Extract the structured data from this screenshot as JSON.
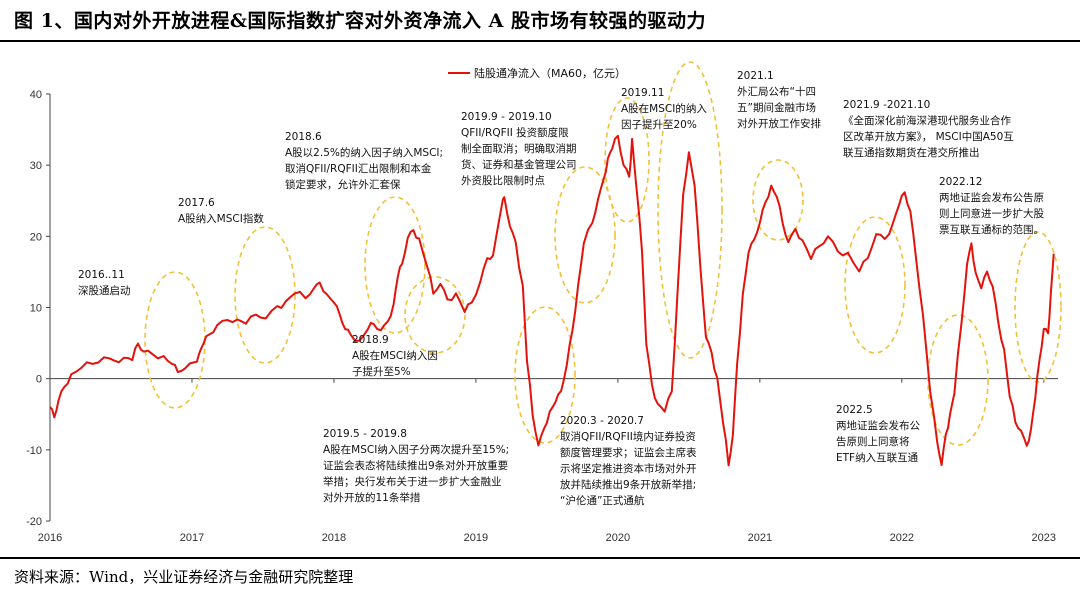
{
  "title": "图 1、国内对外开放进程&国际指数扩容对外资净流入 A 股市场有较强的驱动力",
  "source": "资料来源：Wind，兴业证券经济与金融研究院整理",
  "chart_data": {
    "type": "line",
    "legend": "陆股通净流入（MA60，亿元）",
    "legend_position": "top-center",
    "x_ticks": [
      "2016",
      "2017",
      "2018",
      "2019",
      "2020",
      "2021",
      "2022",
      "2023"
    ],
    "y_ticks": [
      "40",
      "30",
      "20",
      "10",
      "0",
      "-10",
      "-20"
    ],
    "ylim": [
      -20,
      40
    ],
    "xlim": [
      2016.0,
      2023.1
    ],
    "grid": false,
    "colors": {
      "line": "#e3120b",
      "circle": "#f2c039"
    },
    "series": [
      {
        "name": "陆股通净流入（MA60，亿元）",
        "points": [
          [
            2016.0,
            -4.0
          ],
          [
            2016.03,
            -5.5
          ],
          [
            2016.06,
            -3.0
          ],
          [
            2016.1,
            -1.0
          ],
          [
            2016.15,
            0.5
          ],
          [
            2016.22,
            1.5
          ],
          [
            2016.3,
            2.2
          ],
          [
            2016.38,
            2.8
          ],
          [
            2016.45,
            2.5
          ],
          [
            2016.52,
            3.0
          ],
          [
            2016.58,
            2.8
          ],
          [
            2016.62,
            4.8
          ],
          [
            2016.66,
            3.8
          ],
          [
            2016.72,
            3.6
          ],
          [
            2016.8,
            3.0
          ],
          [
            2016.86,
            2.0
          ],
          [
            2016.9,
            1.0
          ],
          [
            2016.95,
            1.6
          ],
          [
            2017.02,
            2.2
          ],
          [
            2017.05,
            3.5
          ],
          [
            2017.08,
            5.0
          ],
          [
            2017.12,
            6.0
          ],
          [
            2017.18,
            7.5
          ],
          [
            2017.25,
            8.3
          ],
          [
            2017.32,
            8.5
          ],
          [
            2017.38,
            7.6
          ],
          [
            2017.45,
            9.0
          ],
          [
            2017.52,
            8.6
          ],
          [
            2017.6,
            10.0
          ],
          [
            2017.66,
            10.8
          ],
          [
            2017.72,
            12.0
          ],
          [
            2017.8,
            11.5
          ],
          [
            2017.86,
            12.6
          ],
          [
            2017.9,
            13.5
          ],
          [
            2017.95,
            12.0
          ],
          [
            2018.0,
            10.5
          ],
          [
            2018.04,
            9.0
          ],
          [
            2018.08,
            7.0
          ],
          [
            2018.12,
            6.3
          ],
          [
            2018.18,
            5.2
          ],
          [
            2018.24,
            7.0
          ],
          [
            2018.28,
            7.8
          ],
          [
            2018.33,
            6.6
          ],
          [
            2018.38,
            8.0
          ],
          [
            2018.42,
            10.5
          ],
          [
            2018.45,
            14.5
          ],
          [
            2018.48,
            16.0
          ],
          [
            2018.52,
            19.8
          ],
          [
            2018.56,
            21.0
          ],
          [
            2018.6,
            19.5
          ],
          [
            2018.66,
            15.5
          ],
          [
            2018.7,
            12.0
          ],
          [
            2018.75,
            13.5
          ],
          [
            2018.8,
            11.0
          ],
          [
            2018.86,
            12.0
          ],
          [
            2018.92,
            9.5
          ],
          [
            2018.97,
            10.5
          ],
          [
            2019.03,
            13.5
          ],
          [
            2019.08,
            17.0
          ],
          [
            2019.12,
            17.5
          ],
          [
            2019.18,
            24.0
          ],
          [
            2019.2,
            25.5
          ],
          [
            2019.24,
            21.5
          ],
          [
            2019.28,
            19.0
          ],
          [
            2019.33,
            13.0
          ],
          [
            2019.36,
            2.5
          ],
          [
            2019.4,
            -5.0
          ],
          [
            2019.44,
            -9.5
          ],
          [
            2019.48,
            -7.0
          ],
          [
            2019.52,
            -4.5
          ],
          [
            2019.56,
            -3.5
          ],
          [
            2019.6,
            -1.8
          ],
          [
            2019.64,
            2.0
          ],
          [
            2019.68,
            7.0
          ],
          [
            2019.72,
            13.0
          ],
          [
            2019.76,
            19.0
          ],
          [
            2019.82,
            22.0
          ],
          [
            2019.86,
            25.0
          ],
          [
            2019.9,
            28.0
          ],
          [
            2019.93,
            31.0
          ],
          [
            2019.96,
            32.5
          ],
          [
            2020.0,
            34.0
          ],
          [
            2020.04,
            30.0
          ],
          [
            2020.08,
            28.5
          ],
          [
            2020.1,
            33.5
          ],
          [
            2020.13,
            27.0
          ],
          [
            2020.17,
            18.0
          ],
          [
            2020.2,
            5.0
          ],
          [
            2020.24,
            -1.0
          ],
          [
            2020.28,
            -3.5
          ],
          [
            2020.33,
            -4.5
          ],
          [
            2020.38,
            -2.0
          ],
          [
            2020.42,
            12.0
          ],
          [
            2020.46,
            26.0
          ],
          [
            2020.5,
            32.0
          ],
          [
            2020.54,
            27.0
          ],
          [
            2020.58,
            16.0
          ],
          [
            2020.62,
            6.0
          ],
          [
            2020.66,
            3.5
          ],
          [
            2020.7,
            0.0
          ],
          [
            2020.74,
            -6.0
          ],
          [
            2020.78,
            -12.0
          ],
          [
            2020.81,
            -8.0
          ],
          [
            2020.84,
            2.0
          ],
          [
            2020.88,
            12.0
          ],
          [
            2020.92,
            17.5
          ],
          [
            2020.96,
            19.5
          ],
          [
            2021.0,
            22.0
          ],
          [
            2021.04,
            25.0
          ],
          [
            2021.08,
            27.0
          ],
          [
            2021.12,
            25.5
          ],
          [
            2021.16,
            22.0
          ],
          [
            2021.2,
            19.0
          ],
          [
            2021.25,
            21.0
          ],
          [
            2021.3,
            19.5
          ],
          [
            2021.36,
            17.0
          ],
          [
            2021.42,
            18.5
          ],
          [
            2021.48,
            20.0
          ],
          [
            2021.55,
            18.0
          ],
          [
            2021.62,
            17.5
          ],
          [
            2021.7,
            15.0
          ],
          [
            2021.76,
            17.0
          ],
          [
            2021.82,
            20.5
          ],
          [
            2021.88,
            19.5
          ],
          [
            2021.94,
            22.0
          ],
          [
            2021.98,
            24.5
          ],
          [
            2022.02,
            26.0
          ],
          [
            2022.06,
            23.5
          ],
          [
            2022.1,
            17.0
          ],
          [
            2022.15,
            9.0
          ],
          [
            2022.2,
            -2.0
          ],
          [
            2022.25,
            -9.0
          ],
          [
            2022.28,
            -12.0
          ],
          [
            2022.31,
            -8.0
          ],
          [
            2022.34,
            -5.0
          ],
          [
            2022.37,
            -2.0
          ],
          [
            2022.42,
            8.0
          ],
          [
            2022.46,
            16.0
          ],
          [
            2022.49,
            19.0
          ],
          [
            2022.52,
            15.0
          ],
          [
            2022.56,
            12.5
          ],
          [
            2022.6,
            15.0
          ],
          [
            2022.64,
            13.0
          ],
          [
            2022.68,
            8.0
          ],
          [
            2022.72,
            4.0
          ],
          [
            2022.76,
            -2.5
          ],
          [
            2022.8,
            -6.0
          ],
          [
            2022.84,
            -7.5
          ],
          [
            2022.88,
            -9.5
          ],
          [
            2022.91,
            -7.0
          ],
          [
            2022.94,
            -2.5
          ],
          [
            2022.97,
            2.5
          ],
          [
            2023.0,
            7.0
          ],
          [
            2023.03,
            6.5
          ],
          [
            2023.05,
            12.0
          ],
          [
            2023.07,
            17.5
          ]
        ]
      }
    ],
    "annotations": [
      {
        "lines": [
          "2016..11",
          "深股通启动"
        ]
      },
      {
        "lines": [
          "2017.6",
          "A股纳入MSCI指数"
        ]
      },
      {
        "lines": [
          "2018.6",
          "A股以2.5%的纳入因子纳入MSCI;",
          "取消QFII/RQFII汇出限制和本金",
          "锁定要求，允许外汇套保"
        ]
      },
      {
        "lines": [
          "2018.9",
          "A股在MSCI纳入因",
          "子提升至5%"
        ]
      },
      {
        "lines": [
          "2019.5 - 2019.8",
          "A股在MSCI纳入因子分两次提升至15%;",
          "证监会表态将陆续推出9条对外开放重要",
          "举措；央行发布关于进一步扩大金融业",
          "对外开放的11条举措"
        ]
      },
      {
        "lines": [
          "2019.9 - 2019.10",
          "QFII/RQFII 投资额度限",
          "制全面取消；明确取消期",
          "货、证券和基金管理公司",
          "外资股比限制时点"
        ]
      },
      {
        "lines": [
          "2019.11",
          "A股在MSCI的纳入",
          "因子提升至20%"
        ]
      },
      {
        "lines": [
          "2020.3 - 2020.7",
          "取消QFII/RQFII境内证券投资",
          "额度管理要求；证监会主席表",
          "示将坚定推进资本市场对外开",
          "放并陆续推出9条开放新举措;",
          "“沪伦通”正式通航"
        ]
      },
      {
        "lines": [
          "2021.1",
          "外汇局公布“十四",
          "五”期间金融市场",
          "对外开放工作安排"
        ]
      },
      {
        "lines": [
          "2021.9 -2021.10",
          "《全面深化前海深港现代服务业合作",
          "区改革开放方案》， MSCI中国A50互",
          "联互通指数期货在港交所推出"
        ]
      },
      {
        "lines": [
          "2022.12",
          "两地证监会发布公告原",
          "则上同意进一步扩大股",
          "票互联互通标的范围。"
        ]
      },
      {
        "lines": [
          "2022.5",
          "两地证监会发布公",
          "告原则上同意将",
          "ETF纳入互联互通"
        ]
      }
    ]
  }
}
